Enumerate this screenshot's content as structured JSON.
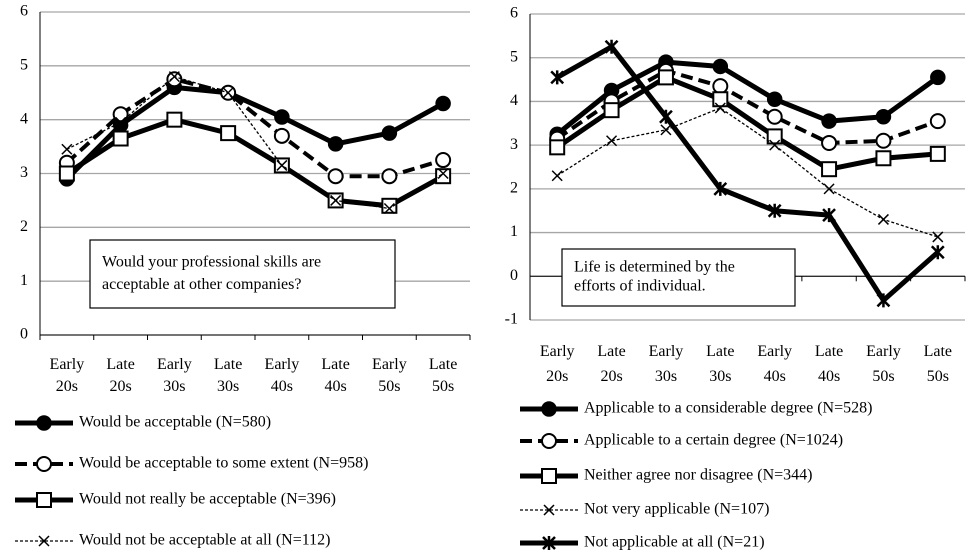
{
  "chart_data": [
    {
      "type": "line",
      "categories": [
        "Early 20s",
        "Late 20s",
        "Early 30s",
        "Late 30s",
        "Early 40s",
        "Late 40s",
        "Early 50s",
        "Late 50s"
      ],
      "ylim": [
        0,
        6
      ],
      "yticks": [
        0,
        1,
        2,
        3,
        4,
        5,
        6
      ],
      "grid": true,
      "annotation": [
        "Would your professional skills are",
        "acceptable at other companies?"
      ],
      "series": [
        {
          "name": "Would be acceptable (N=580)",
          "color": "#000000",
          "style": "solid-thick",
          "marker": "filled-circle",
          "values": [
            2.9,
            3.9,
            4.6,
            4.5,
            4.05,
            3.55,
            3.75,
            4.3
          ]
        },
        {
          "name": "Would be acceptable to some extent (N=958)",
          "color": "#000000",
          "style": "dashed",
          "marker": "open-circle",
          "values": [
            3.2,
            4.1,
            4.75,
            4.5,
            3.7,
            2.95,
            2.95,
            3.25
          ]
        },
        {
          "name": "Would not really be acceptable (N=396)",
          "color": "#000000",
          "style": "solid-thick",
          "marker": "open-square",
          "values": [
            3.0,
            3.65,
            4.0,
            3.75,
            3.15,
            2.5,
            2.4,
            2.95
          ]
        },
        {
          "name": "Would not be acceptable at all (N=112)",
          "color": "#000000",
          "style": "dotted-thin",
          "marker": "cross",
          "values": [
            3.45,
            3.95,
            4.8,
            4.5,
            3.15,
            2.5,
            2.35,
            3.0
          ]
        }
      ]
    },
    {
      "type": "line",
      "categories": [
        "Early 20s",
        "Late 20s",
        "Early 30s",
        "Late 30s",
        "Early 40s",
        "Late 40s",
        "Early 50s",
        "Late 50s"
      ],
      "ylim": [
        -1,
        6
      ],
      "yticks": [
        -1,
        0,
        1,
        2,
        3,
        4,
        5,
        6
      ],
      "grid": true,
      "annotation": [
        "Life is determined by the",
        "efforts of individual."
      ],
      "series": [
        {
          "name": "Applicable to a considerable degree (N=528)",
          "color": "#000000",
          "style": "solid-thick",
          "marker": "filled-circle",
          "values": [
            3.25,
            4.25,
            4.9,
            4.8,
            4.05,
            3.55,
            3.65,
            4.55
          ]
        },
        {
          "name": "Applicable to a certain degree (N=1024)",
          "color": "#000000",
          "style": "dashed",
          "marker": "open-circle",
          "values": [
            3.15,
            4.0,
            4.7,
            4.35,
            3.65,
            3.05,
            3.1,
            3.55
          ]
        },
        {
          "name": "Neither agree nor disagree (N=344)",
          "color": "#000000",
          "style": "solid-thick",
          "marker": "open-square",
          "values": [
            2.95,
            3.8,
            4.55,
            4.05,
            3.2,
            2.45,
            2.7,
            2.8
          ]
        },
        {
          "name": "Not very applicable (N=107)",
          "color": "#000000",
          "style": "dotted-thin",
          "marker": "cross",
          "values": [
            2.3,
            3.1,
            3.35,
            3.85,
            3.0,
            2.0,
            1.3,
            0.9
          ]
        },
        {
          "name": "Not applicable at all (N=21)",
          "color": "#000000",
          "style": "solid-thick",
          "marker": "star",
          "values": [
            4.55,
            5.25,
            3.65,
            2.0,
            1.5,
            1.4,
            -0.55,
            0.55
          ]
        }
      ]
    }
  ]
}
